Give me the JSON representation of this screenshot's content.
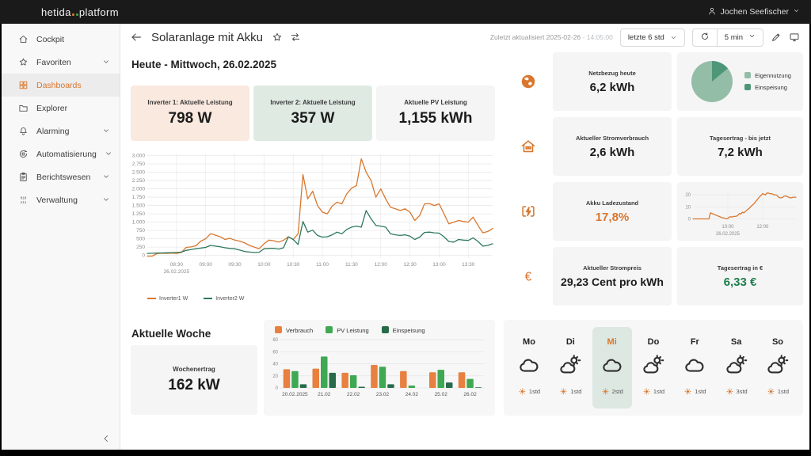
{
  "theme": {
    "accent": "#d9772e",
    "green_value": "#1e7e4d",
    "pie_light": "#93bda7",
    "pie_dark": "#4e9678"
  },
  "topbar": {
    "logo_prefix": "hetida",
    "logo_suffix": "platform",
    "dot_colors": [
      "#d9772e",
      "#3fa154"
    ],
    "user": "Jochen Seefischer"
  },
  "sidebar": {
    "items": [
      {
        "label": "Cockpit",
        "icon": "home-icon",
        "expandable": false,
        "active": false
      },
      {
        "label": "Favoriten",
        "icon": "star-icon",
        "expandable": true,
        "active": false
      },
      {
        "label": "Dashboards",
        "icon": "dashboard-icon",
        "expandable": false,
        "active": true
      },
      {
        "label": "Explorer",
        "icon": "folder-icon",
        "expandable": false,
        "active": false
      },
      {
        "label": "Alarming",
        "icon": "bell-icon",
        "expandable": true,
        "active": false
      },
      {
        "label": "Automatisierung",
        "icon": "automation-icon",
        "expandable": true,
        "active": false
      },
      {
        "label": "Berichtswesen",
        "icon": "report-icon",
        "expandable": true,
        "active": false
      },
      {
        "label": "Verwaltung",
        "icon": "admin-icon",
        "expandable": true,
        "active": false
      }
    ]
  },
  "header": {
    "title": "Solaranlage mit Akku",
    "last_updated": "Zuletzt aktualisiert 2025-02-26",
    "last_updated_time": "- 14:05:00",
    "range_select": "letzte 6 std",
    "refresh_interval": "5 min"
  },
  "today": {
    "heading": "Heute - Mittwoch, 26.02.2025",
    "cards": [
      {
        "label": "Inverter 1: Aktuelle Leistung",
        "value": "798 W",
        "bg": "#fae9df"
      },
      {
        "label": "Inverter 2: Aktuelle Leistung",
        "value": "357 W",
        "bg": "#dfeae3"
      },
      {
        "label": "Aktuelle PV Leistung",
        "value": "1,155 kWh",
        "bg": "#f5f5f6"
      }
    ]
  },
  "week": {
    "heading": "Aktuelle Woche",
    "card": {
      "label": "Wochenertrag",
      "value": "162 kW"
    }
  },
  "right_column": {
    "rows": [
      {
        "icon": "globe-icon",
        "cells": [
          {
            "kind": "stat",
            "label": "Netzbezug heute",
            "value": "6,2 kWh"
          },
          {
            "kind": "pie",
            "chart": 3
          }
        ]
      },
      {
        "icon": "house-icon",
        "cells": [
          {
            "kind": "stat",
            "label": "Aktueller Stromverbrauch",
            "value": "2,6 kWh"
          },
          {
            "kind": "stat",
            "label": "Tagesertrag - bis jetzt",
            "value": "7,2 kWh"
          }
        ]
      },
      {
        "icon": "battery-icon",
        "cells": [
          {
            "kind": "stat",
            "label": "Akku Ladezustand",
            "value": "17,8%",
            "value_color": "#d9772e"
          },
          {
            "kind": "line",
            "chart": 1
          }
        ]
      },
      {
        "icon": "euro-icon",
        "cells": [
          {
            "kind": "stat",
            "label": "Aktueller Strompreis",
            "value": "29,23 Cent pro kWh",
            "value_size": "14px"
          },
          {
            "kind": "stat",
            "label": "Tagesertrag in €",
            "value": "6,33 €",
            "value_color": "#1e7e4d"
          }
        ]
      }
    ]
  },
  "weather": {
    "days": [
      {
        "day": "Mo",
        "icon": "cloud-icon",
        "hours": "1std",
        "active": false
      },
      {
        "day": "Di",
        "icon": "sun-cloud-icon",
        "hours": "1std",
        "active": false
      },
      {
        "day": "Mi",
        "icon": "cloud-icon",
        "hours": "2std",
        "active": true
      },
      {
        "day": "Do",
        "icon": "sun-cloud-icon",
        "hours": "1std",
        "active": false
      },
      {
        "day": "Fr",
        "icon": "cloud-icon",
        "hours": "1std",
        "active": false
      },
      {
        "day": "Sa",
        "icon": "sun-cloud-icon",
        "hours": "3std",
        "active": false
      },
      {
        "day": "So",
        "icon": "sun-cloud-icon",
        "hours": "1std",
        "active": false
      }
    ]
  },
  "chart_data": [
    {
      "id": "inverter_power",
      "type": "line",
      "x_start_min": 480,
      "x_step_min": 5,
      "x_end_min": 835,
      "x_ticks": [
        {
          "min": 510,
          "label": "08:30"
        },
        {
          "min": 540,
          "label": "09:00"
        },
        {
          "min": 570,
          "label": "09:30"
        },
        {
          "min": 600,
          "label": "10:00"
        },
        {
          "min": 630,
          "label": "10:30"
        },
        {
          "min": 660,
          "label": "11:00"
        },
        {
          "min": 690,
          "label": "11:30"
        },
        {
          "min": 720,
          "label": "12:00"
        },
        {
          "min": 750,
          "label": "12:30"
        },
        {
          "min": 780,
          "label": "13:00"
        },
        {
          "min": 810,
          "label": "13:30"
        }
      ],
      "x_date_label": "26.02.2025",
      "ylim": [
        0,
        3000
      ],
      "y_ticks": [
        0,
        250,
        500,
        750,
        1000,
        1250,
        1500,
        1750,
        2000,
        2250,
        2500,
        2750,
        3000
      ],
      "y_tick_labels": [
        "0",
        "250",
        "500",
        "750",
        "1.000",
        "1.250",
        "1.500",
        "1.750",
        "2.000",
        "2.250",
        "2.500",
        "2.750",
        "3.000"
      ],
      "grid": true,
      "legend_position": "bottom",
      "series": [
        {
          "name": "Inverter1 W",
          "color": "#d9772e",
          "values": [
            -20,
            -20,
            55,
            65,
            60,
            70,
            60,
            90,
            240,
            255,
            290,
            430,
            500,
            650,
            610,
            560,
            480,
            515,
            460,
            430,
            380,
            300,
            250,
            200,
            350,
            460,
            440,
            400,
            455,
            560,
            480,
            650,
            2430,
            1700,
            1930,
            1500,
            1300,
            1250,
            1480,
            1600,
            1550,
            1850,
            2020,
            2100,
            2900,
            2500,
            2250,
            1750,
            2000,
            1700,
            1450,
            1400,
            1350,
            1400,
            1300,
            1050,
            1200,
            1550,
            1560,
            1500,
            1550,
            1250,
            950,
            1000,
            1050,
            1020,
            1000,
            1150,
            900,
            680,
            720,
            810
          ]
        },
        {
          "name": "Inverter2 W",
          "color": "#2e7a5c",
          "values": [
            60,
            65,
            70,
            75,
            80,
            85,
            90,
            100,
            150,
            180,
            200,
            220,
            240,
            300,
            280,
            260,
            230,
            210,
            200,
            160,
            120,
            100,
            90,
            95,
            200,
            210,
            215,
            190,
            230,
            560,
            480,
            330,
            1020,
            700,
            760,
            600,
            550,
            560,
            620,
            700,
            650,
            780,
            850,
            880,
            850,
            1350,
            1100,
            900,
            880,
            850,
            650,
            620,
            600,
            620,
            580,
            480,
            550,
            690,
            700,
            680,
            670,
            560,
            420,
            400,
            480,
            460,
            450,
            530,
            420,
            280,
            300,
            350
          ]
        }
      ]
    },
    {
      "id": "battery_soc",
      "type": "line",
      "x_start_min": 480,
      "x_step_min": 5,
      "x_end_min": 835,
      "x_ticks": [
        {
          "min": 600,
          "label": "10:00"
        },
        {
          "min": 720,
          "label": "12:00"
        }
      ],
      "x_date_label": "26.02.2025",
      "ylim": [
        0,
        24
      ],
      "y_ticks": [
        0,
        10,
        20
      ],
      "y_tick_labels": [
        "0",
        "10",
        "20"
      ],
      "grid": true,
      "series": [
        {
          "name": "Akku Ladezustand %",
          "color": "#d9772e",
          "values": [
            0,
            0,
            0,
            0,
            0,
            0,
            0,
            0,
            0,
            0,
            0,
            0,
            5,
            4.5,
            4,
            3.5,
            3,
            2.5,
            2,
            1.5,
            1,
            0.8,
            0.5,
            0.2,
            0.2,
            1.5,
            1.8,
            1.5,
            2,
            2,
            2.2,
            3,
            4.5,
            4,
            5.5,
            5,
            6,
            7,
            8,
            9,
            10.5,
            11.5,
            12.5,
            14,
            15.5,
            17,
            18.5,
            19.5,
            21,
            20.5,
            20,
            21.5,
            21.5,
            21,
            21,
            20.5,
            20,
            20,
            19.5,
            18,
            17.5,
            17.5,
            18,
            19,
            19,
            18.5,
            18,
            17.5,
            17.5,
            18,
            18,
            18
          ]
        }
      ]
    },
    {
      "id": "week_overview",
      "type": "bar",
      "categories": [
        "20.02.2025",
        "21.02",
        "22.02",
        "23.02",
        "24.02",
        "25.02",
        "26.02"
      ],
      "ylim": [
        0,
        80
      ],
      "y_ticks": [
        0,
        20,
        40,
        60,
        80
      ],
      "y_tick_labels": [
        "0",
        "20",
        "40",
        "60",
        "80"
      ],
      "legend_position": "top",
      "series": [
        {
          "name": "Verbrauch",
          "color": "#e8803f",
          "values": [
            31,
            32,
            25,
            38,
            28,
            26,
            26
          ]
        },
        {
          "name": "PV Leistung",
          "color": "#3fa852",
          "values": [
            28,
            52,
            21,
            35,
            4,
            30,
            15
          ]
        },
        {
          "name": "Einspeisung",
          "color": "#276b4b",
          "values": [
            6,
            25,
            2,
            6,
            0,
            9,
            1
          ]
        }
      ]
    },
    {
      "id": "usage_pie",
      "type": "pie",
      "slices": [
        {
          "label": "Eigennutzung",
          "value": 86,
          "color": "#93bda7"
        },
        {
          "label": "Einspeisung",
          "value": 14,
          "color": "#4e9678"
        }
      ]
    }
  ]
}
